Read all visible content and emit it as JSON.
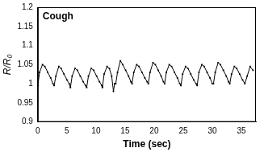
{
  "chart_data": {
    "type": "line",
    "annotation": "Cough",
    "x_label": "Time (sec)",
    "y_label": "R/R₀",
    "x": [
      0,
      0.3,
      0.8,
      1.2,
      1.7,
      2.2,
      2.6,
      2.8,
      3.1,
      3.6,
      4.0,
      4.5,
      5.0,
      5.4,
      5.6,
      5.9,
      6.4,
      6.8,
      7.3,
      7.8,
      8.2,
      8.4,
      8.7,
      9.2,
      9.6,
      10.1,
      10.6,
      11.0,
      11.1,
      11.4,
      11.9,
      12.3,
      12.7,
      13.0,
      13.2,
      13.4,
      13.7,
      14.2,
      14.6,
      15.1,
      15.6,
      16.0,
      16.2,
      16.5,
      17.0,
      17.4,
      17.9,
      18.4,
      18.8,
      19.0,
      19.3,
      19.8,
      20.2,
      20.7,
      21.2,
      21.6,
      21.8,
      22.1,
      22.6,
      23.0,
      23.5,
      24.0,
      24.4,
      24.6,
      24.9,
      25.4,
      25.8,
      26.3,
      26.8,
      27.2,
      27.4,
      27.7,
      28.2,
      28.6,
      29.1,
      29.6,
      30.0,
      30.2,
      30.5,
      31.0,
      31.4,
      31.9,
      32.4,
      32.8,
      33.0,
      33.3,
      33.8,
      34.2,
      34.7,
      35.2,
      35.6,
      36.0,
      36.5,
      37.0
    ],
    "values": [
      0.995,
      1.03,
      1.05,
      1.045,
      1.03,
      1.015,
      1.0,
      0.995,
      1.02,
      1.045,
      1.04,
      1.025,
      1.01,
      1.0,
      0.99,
      1.02,
      1.04,
      1.035,
      1.02,
      1.005,
      0.995,
      0.99,
      1.02,
      1.04,
      1.035,
      1.02,
      1.005,
      0.995,
      0.99,
      1.025,
      1.045,
      1.04,
      1.02,
      0.98,
      1.0,
      1.0,
      1.03,
      1.06,
      1.05,
      1.035,
      1.02,
      1.005,
      1.0,
      1.03,
      1.05,
      1.045,
      1.03,
      1.015,
      1.005,
      1.0,
      1.03,
      1.055,
      1.05,
      1.035,
      1.02,
      1.005,
      1.0,
      1.03,
      1.05,
      1.045,
      1.03,
      1.015,
      1.0,
      0.995,
      1.025,
      1.045,
      1.04,
      1.025,
      1.01,
      1.0,
      0.995,
      1.03,
      1.05,
      1.045,
      1.03,
      1.015,
      1.0,
      1.0,
      1.03,
      1.055,
      1.05,
      1.035,
      1.02,
      1.005,
      1.0,
      1.025,
      1.045,
      1.04,
      1.025,
      1.01,
      1.0,
      1.02,
      1.045,
      1.035
    ],
    "color": "#000000",
    "marker": "square",
    "xlim": [
      0,
      37.5
    ],
    "xticks": [
      0,
      5,
      10,
      15,
      20,
      25,
      30,
      35
    ],
    "ylim": [
      0.9,
      1.2
    ],
    "yticks": [
      0.9,
      0.95,
      1,
      1.05,
      1.1,
      1.15,
      1.2
    ],
    "grid": false
  }
}
